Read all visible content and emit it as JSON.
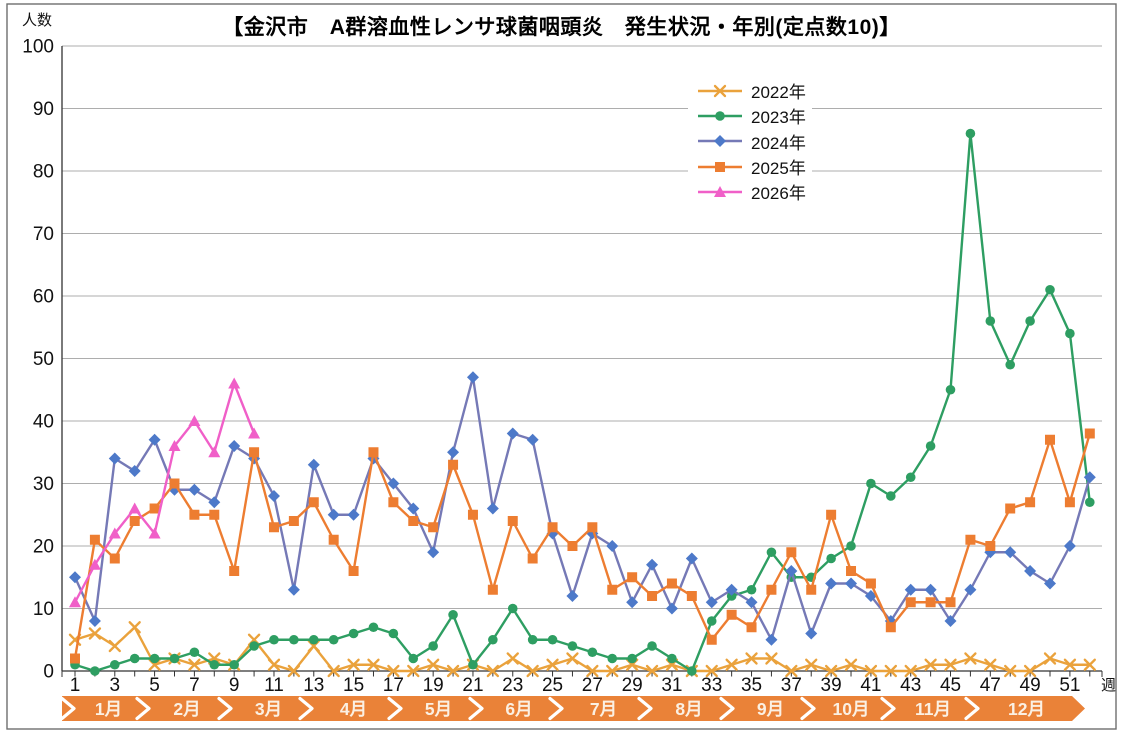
{
  "title": "【金沢市　A群溶血性レンサ球菌咽頭炎　発生状況・年別(定点数10)】",
  "y_axis": {
    "unit": "人数",
    "min": 0,
    "max": 100,
    "step": 10,
    "tick_labels": [
      "0",
      "10",
      "20",
      "30",
      "40",
      "50",
      "60",
      "70",
      "80",
      "90",
      "100"
    ]
  },
  "x_axis": {
    "unit": "週",
    "weeks": 52,
    "tick_labels": [
      "1",
      "3",
      "5",
      "7",
      "9",
      "11",
      "13",
      "15",
      "17",
      "19",
      "21",
      "23",
      "25",
      "27",
      "29",
      "31",
      "33",
      "35",
      "37",
      "39",
      "41",
      "43",
      "45",
      "47",
      "49",
      "51"
    ]
  },
  "months": [
    "1月",
    "2月",
    "3月",
    "4月",
    "5月",
    "6月",
    "7月",
    "8月",
    "9月",
    "10月",
    "11月",
    "12月"
  ],
  "month_band_color": "#EA8238",
  "month_band_text_color": "#FBF0E3",
  "grid_color": "#ADADAD",
  "axis_color": "#333333",
  "chart_data": {
    "type": "line",
    "title": "【金沢市　A群溶血性レンサ球菌咽頭炎　発生状況・年別(定点数10)】",
    "xlabel": "週",
    "ylabel": "人数",
    "x_range": [
      1,
      52
    ],
    "ylim": [
      0,
      100
    ],
    "grid": true,
    "legend_position": "upper-center",
    "series": [
      {
        "name": "2022年",
        "color": "#EAA23C",
        "marker": "x",
        "values": [
          5,
          6,
          4,
          7,
          1,
          2,
          1,
          2,
          1,
          5,
          1,
          0,
          4,
          0,
          1,
          1,
          0,
          0,
          1,
          0,
          1,
          0,
          2,
          0,
          1,
          2,
          0,
          0,
          1,
          0,
          1,
          0,
          0,
          1,
          2,
          2,
          0,
          1,
          0,
          1,
          0,
          0,
          0,
          1,
          1,
          2,
          1,
          0,
          0,
          2,
          1,
          1
        ]
      },
      {
        "name": "2023年",
        "color": "#2E9E62",
        "marker": "circle",
        "values": [
          1,
          0,
          1,
          2,
          2,
          2,
          3,
          1,
          1,
          4,
          5,
          5,
          5,
          5,
          6,
          7,
          6,
          2,
          4,
          9,
          1,
          5,
          10,
          5,
          5,
          4,
          3,
          2,
          2,
          4,
          2,
          0,
          8,
          12,
          13,
          19,
          15,
          15,
          18,
          20,
          30,
          28,
          31,
          36,
          45,
          86,
          56,
          49,
          56,
          61,
          54,
          27
        ]
      },
      {
        "name": "2024年",
        "color": "#7579B6",
        "marker_color": "#4D79C9",
        "marker": "diamond",
        "values": [
          15,
          8,
          34,
          32,
          37,
          29,
          29,
          27,
          36,
          34,
          28,
          13,
          33,
          25,
          25,
          34,
          30,
          26,
          19,
          35,
          47,
          26,
          38,
          37,
          22,
          12,
          22,
          20,
          11,
          17,
          10,
          18,
          11,
          13,
          11,
          5,
          16,
          6,
          14,
          14,
          12,
          8,
          13,
          13,
          8,
          13,
          19,
          19,
          16,
          14,
          20,
          31
        ]
      },
      {
        "name": "2025年",
        "color": "#ED7D31",
        "marker": "square",
        "values": [
          2,
          21,
          18,
          24,
          26,
          30,
          25,
          25,
          16,
          35,
          23,
          24,
          27,
          21,
          16,
          35,
          27,
          24,
          23,
          33,
          25,
          13,
          24,
          18,
          23,
          20,
          23,
          13,
          15,
          12,
          14,
          12,
          5,
          9,
          7,
          13,
          19,
          13,
          25,
          16,
          14,
          7,
          11,
          11,
          11,
          21,
          20,
          26,
          27,
          37,
          27,
          38
        ]
      },
      {
        "name": "2026年",
        "color": "#F05FC8",
        "marker": "triangle",
        "values": [
          11,
          17,
          22,
          26,
          22,
          36,
          40,
          35,
          46,
          38
        ]
      }
    ]
  }
}
